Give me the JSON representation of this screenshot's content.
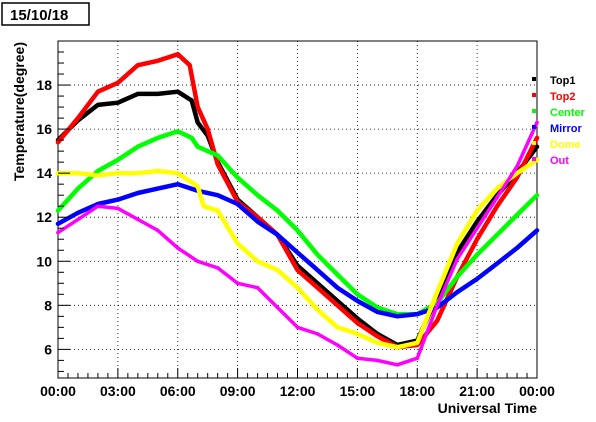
{
  "chart_data": {
    "type": "scatter",
    "title": "15/10/18",
    "xlabel": "Universal Time",
    "ylabel": "Temperature(degree)",
    "xlim": [
      0,
      24
    ],
    "ylim": [
      4.7,
      20
    ],
    "grid": true,
    "legend_position": "right",
    "x_ticks": [
      {
        "value": 0,
        "label": "00:00"
      },
      {
        "value": 3,
        "label": "03:00"
      },
      {
        "value": 6,
        "label": "06:00"
      },
      {
        "value": 9,
        "label": "09:00"
      },
      {
        "value": 12,
        "label": "12:00"
      },
      {
        "value": 15,
        "label": "15:00"
      },
      {
        "value": 18,
        "label": "18:00"
      },
      {
        "value": 21,
        "label": "21:00"
      },
      {
        "value": 24,
        "label": "00:00"
      }
    ],
    "y_ticks": [
      {
        "value": 6,
        "label": "6"
      },
      {
        "value": 8,
        "label": "8"
      },
      {
        "value": 10,
        "label": "10"
      },
      {
        "value": 12,
        "label": "12"
      },
      {
        "value": 14,
        "label": "14"
      },
      {
        "value": 16,
        "label": "16"
      },
      {
        "value": 18,
        "label": "18"
      }
    ],
    "series": [
      {
        "name": "Top1",
        "color": "#000000",
        "points": [
          [
            0,
            15.5
          ],
          [
            1,
            16.4
          ],
          [
            2,
            17.1
          ],
          [
            3,
            17.2
          ],
          [
            4,
            17.6
          ],
          [
            5,
            17.6
          ],
          [
            6,
            17.7
          ],
          [
            6.7,
            17.3
          ],
          [
            7,
            16.3
          ],
          [
            7.5,
            15.7
          ],
          [
            8,
            14.5
          ],
          [
            9,
            12.8
          ],
          [
            10,
            12.0
          ],
          [
            11,
            11.2
          ],
          [
            12,
            9.8
          ],
          [
            13,
            9.0
          ],
          [
            14,
            8.2
          ],
          [
            15,
            7.4
          ],
          [
            16,
            6.7
          ],
          [
            17,
            6.2
          ],
          [
            18,
            6.4
          ],
          [
            19,
            8.4
          ],
          [
            20,
            10.4
          ],
          [
            21,
            11.8
          ],
          [
            22,
            13.0
          ],
          [
            23,
            14.0
          ],
          [
            24,
            15.2
          ]
        ]
      },
      {
        "name": "Top2",
        "color": "#ff0000",
        "points": [
          [
            0,
            15.4
          ],
          [
            1,
            16.5
          ],
          [
            2,
            17.7
          ],
          [
            3,
            18.1
          ],
          [
            4,
            18.9
          ],
          [
            5,
            19.1
          ],
          [
            6,
            19.4
          ],
          [
            6.6,
            18.9
          ],
          [
            7,
            17.0
          ],
          [
            7.5,
            16.0
          ],
          [
            8,
            14.4
          ],
          [
            9,
            12.7
          ],
          [
            10,
            12.0
          ],
          [
            11,
            11.2
          ],
          [
            12,
            9.6
          ],
          [
            13,
            8.8
          ],
          [
            14,
            8.0
          ],
          [
            15,
            7.2
          ],
          [
            16,
            6.6
          ],
          [
            17,
            6.1
          ],
          [
            18,
            6.2
          ],
          [
            19,
            7.3
          ],
          [
            20,
            9.3
          ],
          [
            21,
            11.0
          ],
          [
            22,
            12.5
          ],
          [
            23,
            13.8
          ],
          [
            24,
            15.6
          ]
        ]
      },
      {
        "name": "Center",
        "color": "#00ff00",
        "points": [
          [
            0,
            12.3
          ],
          [
            1,
            13.3
          ],
          [
            2,
            14.1
          ],
          [
            3,
            14.6
          ],
          [
            4,
            15.2
          ],
          [
            5,
            15.6
          ],
          [
            6,
            15.9
          ],
          [
            6.7,
            15.6
          ],
          [
            7,
            15.2
          ],
          [
            8,
            14.8
          ],
          [
            9,
            13.8
          ],
          [
            10,
            13.0
          ],
          [
            11,
            12.3
          ],
          [
            12,
            11.4
          ],
          [
            13,
            10.3
          ],
          [
            14,
            9.4
          ],
          [
            15,
            8.5
          ],
          [
            16,
            7.9
          ],
          [
            17,
            7.6
          ],
          [
            18,
            7.6
          ],
          [
            19,
            8.1
          ],
          [
            20,
            9.3
          ],
          [
            21,
            10.3
          ],
          [
            22,
            11.2
          ],
          [
            23,
            12.1
          ],
          [
            24,
            13.0
          ]
        ]
      },
      {
        "name": "Mirror",
        "color": "#0000ff",
        "points": [
          [
            0,
            11.7
          ],
          [
            1,
            12.2
          ],
          [
            2,
            12.6
          ],
          [
            3,
            12.8
          ],
          [
            4,
            13.1
          ],
          [
            5,
            13.3
          ],
          [
            6,
            13.5
          ],
          [
            7,
            13.2
          ],
          [
            8,
            13.0
          ],
          [
            9,
            12.6
          ],
          [
            10,
            11.8
          ],
          [
            11,
            11.2
          ],
          [
            12,
            10.4
          ],
          [
            13,
            9.6
          ],
          [
            14,
            8.8
          ],
          [
            15,
            8.2
          ],
          [
            16,
            7.7
          ],
          [
            17,
            7.5
          ],
          [
            18,
            7.6
          ],
          [
            19,
            7.9
          ],
          [
            20,
            8.6
          ],
          [
            21,
            9.2
          ],
          [
            22,
            9.9
          ],
          [
            23,
            10.6
          ],
          [
            24,
            11.4
          ]
        ]
      },
      {
        "name": "Dome",
        "color": "#ffff00",
        "points": [
          [
            0,
            14.0
          ],
          [
            1,
            14.0
          ],
          [
            2,
            13.9
          ],
          [
            3,
            14.0
          ],
          [
            4,
            14.0
          ],
          [
            5,
            14.1
          ],
          [
            6,
            14.0
          ],
          [
            7,
            13.4
          ],
          [
            7.3,
            12.5
          ],
          [
            8,
            12.3
          ],
          [
            9,
            10.8
          ],
          [
            10,
            10.0
          ],
          [
            11,
            9.6
          ],
          [
            12,
            8.8
          ],
          [
            13,
            7.8
          ],
          [
            14,
            7.0
          ],
          [
            15,
            6.7
          ],
          [
            16,
            6.3
          ],
          [
            17,
            6.1
          ],
          [
            18,
            6.3
          ],
          [
            19,
            8.6
          ],
          [
            20,
            10.8
          ],
          [
            21,
            12.3
          ],
          [
            22,
            13.3
          ],
          [
            23,
            14.0
          ],
          [
            24,
            14.6
          ]
        ]
      },
      {
        "name": "Out",
        "color": "#ff00ff",
        "points": [
          [
            0,
            11.3
          ],
          [
            1,
            11.9
          ],
          [
            2,
            12.5
          ],
          [
            3,
            12.4
          ],
          [
            4,
            11.9
          ],
          [
            5,
            11.4
          ],
          [
            6,
            10.6
          ],
          [
            7,
            10.0
          ],
          [
            8,
            9.7
          ],
          [
            9,
            9.0
          ],
          [
            10,
            8.8
          ],
          [
            11,
            7.9
          ],
          [
            12,
            7.0
          ],
          [
            13,
            6.7
          ],
          [
            14,
            6.2
          ],
          [
            15,
            5.6
          ],
          [
            16,
            5.5
          ],
          [
            17,
            5.3
          ],
          [
            18,
            5.6
          ],
          [
            19,
            8.0
          ],
          [
            20,
            10.1
          ],
          [
            21,
            11.5
          ],
          [
            22,
            12.9
          ],
          [
            23,
            14.3
          ],
          [
            24,
            16.3
          ]
        ]
      }
    ]
  }
}
